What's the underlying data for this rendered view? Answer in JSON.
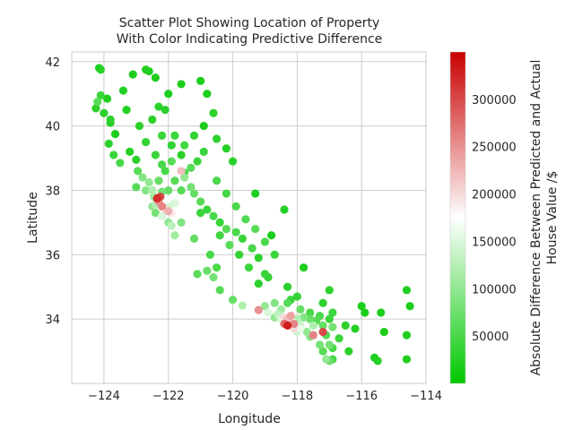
{
  "chart_data": {
    "type": "scatter",
    "title_lines": [
      "Scatter Plot Showing Location of Property",
      "With Color Indicating Predictive Difference"
    ],
    "xlabel": "Longitude",
    "ylabel": "Latitude",
    "xlim": [
      -125,
      -114
    ],
    "ylim": [
      32,
      42.3
    ],
    "x_ticks": [
      -124,
      -122,
      -120,
      -118,
      -116,
      -114
    ],
    "y_ticks": [
      34,
      36,
      38,
      40,
      42
    ],
    "x_tick_labels": [
      "−124",
      "−122",
      "−120",
      "−118",
      "−116",
      "−114"
    ],
    "y_tick_labels": [
      "34",
      "36",
      "38",
      "40",
      "42"
    ],
    "grid": true,
    "colorbar": {
      "label_lines": [
        "Absolute Difference Between Predicted and Actual",
        "House Value /$"
      ],
      "range": [
        0,
        350000
      ],
      "ticks": [
        50000,
        100000,
        150000,
        200000,
        250000,
        300000
      ],
      "tick_labels": [
        "50000",
        "100000",
        "150000",
        "200000",
        "250000",
        "300000"
      ],
      "colors": [
        "#00c800",
        "#ffffff",
        "#c80000"
      ]
    },
    "points": [
      [
        -124.15,
        41.8,
        20000
      ],
      [
        -124.1,
        41.75,
        25000
      ],
      [
        -124.25,
        40.55,
        30000
      ],
      [
        -124.1,
        40.95,
        40000
      ],
      [
        -123.9,
        40.85,
        20000
      ],
      [
        -124.2,
        40.75,
        60000
      ],
      [
        -124.0,
        40.4,
        30000
      ],
      [
        -123.8,
        40.1,
        25000
      ],
      [
        -123.85,
        39.45,
        30000
      ],
      [
        -123.65,
        39.75,
        20000
      ],
      [
        -123.7,
        39.1,
        40000
      ],
      [
        -123.5,
        38.85,
        50000
      ],
      [
        -123.2,
        39.2,
        25000
      ],
      [
        -123.0,
        38.95,
        30000
      ],
      [
        -122.95,
        38.6,
        60000
      ],
      [
        -122.8,
        38.4,
        90000
      ],
      [
        -122.6,
        38.25,
        100000
      ],
      [
        -122.5,
        38.0,
        120000
      ],
      [
        -122.45,
        37.8,
        110000
      ],
      [
        -122.35,
        37.75,
        320000
      ],
      [
        -122.25,
        37.8,
        300000
      ],
      [
        -122.3,
        37.65,
        250000
      ],
      [
        -122.2,
        37.5,
        260000
      ],
      [
        -122.1,
        37.4,
        200000
      ],
      [
        -122.0,
        37.35,
        230000
      ],
      [
        -121.9,
        37.3,
        190000
      ],
      [
        -121.95,
        37.55,
        140000
      ],
      [
        -122.05,
        37.7,
        170000
      ],
      [
        -121.8,
        37.6,
        150000
      ],
      [
        -122.4,
        37.55,
        120000
      ],
      [
        -122.5,
        37.5,
        100000
      ],
      [
        -122.2,
        37.95,
        80000
      ],
      [
        -122.0,
        38.0,
        70000
      ],
      [
        -121.8,
        38.3,
        60000
      ],
      [
        -121.5,
        38.55,
        50000
      ],
      [
        -121.3,
        38.7,
        60000
      ],
      [
        -121.1,
        38.9,
        40000
      ],
      [
        -121.6,
        39.1,
        30000
      ],
      [
        -121.8,
        39.7,
        40000
      ],
      [
        -122.1,
        40.5,
        30000
      ],
      [
        -122.3,
        40.6,
        30000
      ],
      [
        -122.4,
        41.5,
        20000
      ],
      [
        -122.6,
        41.7,
        20000
      ],
      [
        -122.7,
        41.75,
        25000
      ],
      [
        -122.5,
        40.2,
        30000
      ],
      [
        -122.2,
        39.7,
        40000
      ],
      [
        -121.9,
        39.4,
        35000
      ],
      [
        -121.6,
        38.6,
        220000
      ],
      [
        -121.5,
        38.4,
        100000
      ],
      [
        -121.3,
        38.1,
        80000
      ],
      [
        -121.2,
        37.9,
        70000
      ],
      [
        -121.0,
        37.65,
        60000
      ],
      [
        -120.8,
        37.4,
        40000
      ],
      [
        -120.6,
        37.2,
        50000
      ],
      [
        -120.4,
        37.0,
        40000
      ],
      [
        -120.2,
        36.8,
        60000
      ],
      [
        -119.9,
        36.7,
        50000
      ],
      [
        -119.7,
        36.5,
        40000
      ],
      [
        -119.4,
        36.2,
        50000
      ],
      [
        -119.2,
        35.9,
        30000
      ],
      [
        -119.0,
        35.4,
        40000
      ],
      [
        -118.9,
        35.3,
        35000
      ],
      [
        -120.6,
        35.3,
        80000
      ],
      [
        -120.4,
        34.9,
        60000
      ],
      [
        -120.0,
        34.6,
        70000
      ],
      [
        -119.7,
        34.42,
        120000
      ],
      [
        -119.2,
        34.28,
        250000
      ],
      [
        -118.9,
        34.2,
        150000
      ],
      [
        -118.6,
        34.15,
        130000
      ],
      [
        -118.4,
        34.05,
        200000
      ],
      [
        -118.3,
        34.0,
        220000
      ],
      [
        -118.2,
        34.1,
        240000
      ],
      [
        -118.15,
        33.9,
        180000
      ],
      [
        -118.3,
        33.8,
        330000
      ],
      [
        -118.1,
        33.85,
        260000
      ],
      [
        -117.9,
        33.8,
        140000
      ],
      [
        -117.9,
        33.7,
        160000
      ],
      [
        -117.7,
        33.6,
        100000
      ],
      [
        -117.6,
        33.45,
        90000
      ],
      [
        -117.3,
        33.2,
        80000
      ],
      [
        -117.2,
        33.0,
        60000
      ],
      [
        -117.1,
        32.75,
        100000
      ],
      [
        -117.0,
        32.7,
        70000
      ],
      [
        -117.3,
        34.1,
        50000
      ],
      [
        -117.4,
        33.95,
        60000
      ],
      [
        -117.0,
        34.0,
        40000
      ],
      [
        -116.5,
        33.8,
        30000
      ],
      [
        -116.2,
        33.7,
        25000
      ],
      [
        -115.6,
        32.8,
        20000
      ],
      [
        -115.5,
        32.7,
        25000
      ],
      [
        -116.9,
        32.75,
        50000
      ],
      [
        -117.2,
        34.5,
        30000
      ],
      [
        -118.2,
        34.6,
        40000
      ],
      [
        -118.0,
        34.7,
        35000
      ],
      [
        -119.0,
        34.4,
        100000
      ],
      [
        -118.5,
        34.3,
        110000
      ],
      [
        -118.0,
        34.0,
        120000
      ],
      [
        -117.8,
        34.05,
        90000
      ],
      [
        -117.6,
        34.0,
        70000
      ],
      [
        -118.1,
        33.7,
        200000
      ],
      [
        -117.5,
        33.5,
        260000
      ],
      [
        -116.9,
        33.75,
        80000
      ],
      [
        -115.9,
        34.2,
        20000
      ],
      [
        -115.4,
        34.2,
        20000
      ],
      [
        -115.3,
        33.6,
        20000
      ],
      [
        -114.6,
        34.9,
        20000
      ],
      [
        -114.5,
        34.4,
        20000
      ],
      [
        -114.6,
        33.5,
        20000
      ],
      [
        -114.6,
        32.75,
        20000
      ],
      [
        -116.0,
        34.4,
        20000
      ],
      [
        -117.0,
        34.9,
        30000
      ],
      [
        -116.9,
        34.2,
        40000
      ],
      [
        -117.8,
        35.6,
        20000
      ],
      [
        -118.3,
        35.0,
        30000
      ],
      [
        -118.8,
        36.6,
        20000
      ],
      [
        -118.4,
        37.4,
        25000
      ],
      [
        -119.3,
        37.9,
        20000
      ],
      [
        -120.0,
        38.9,
        30000
      ],
      [
        -120.2,
        39.3,
        25000
      ],
      [
        -120.5,
        39.6,
        30000
      ],
      [
        -120.9,
        40.0,
        20000
      ],
      [
        -120.6,
        40.4,
        30000
      ],
      [
        -120.8,
        41.0,
        20000
      ],
      [
        -121.0,
        41.4,
        20000
      ],
      [
        -121.6,
        41.3,
        20000
      ],
      [
        -122.0,
        41.0,
        20000
      ],
      [
        -123.1,
        41.6,
        20000
      ],
      [
        -123.4,
        41.1,
        25000
      ],
      [
        -123.8,
        40.2,
        30000
      ],
      [
        -123.3,
        40.5,
        25000
      ],
      [
        -122.9,
        40.0,
        30000
      ],
      [
        -122.7,
        39.5,
        35000
      ],
      [
        -122.4,
        39.1,
        40000
      ],
      [
        -122.2,
        38.8,
        50000
      ],
      [
        -121.9,
        38.9,
        60000
      ],
      [
        -121.5,
        39.4,
        45000
      ],
      [
        -121.2,
        39.7,
        35000
      ],
      [
        -120.9,
        39.2,
        40000
      ],
      [
        -120.5,
        38.3,
        50000
      ],
      [
        -120.2,
        37.9,
        45000
      ],
      [
        -119.9,
        37.5,
        50000
      ],
      [
        -119.6,
        37.1,
        55000
      ],
      [
        -119.3,
        36.8,
        60000
      ],
      [
        -119.0,
        36.4,
        50000
      ],
      [
        -118.7,
        36.0,
        40000
      ],
      [
        -120.1,
        36.3,
        60000
      ],
      [
        -120.7,
        36.0,
        50000
      ],
      [
        -121.2,
        36.5,
        70000
      ],
      [
        -121.8,
        36.6,
        110000
      ],
      [
        -121.9,
        36.9,
        130000
      ],
      [
        -122.0,
        37.0,
        100000
      ],
      [
        -121.6,
        37.0,
        90000
      ],
      [
        -122.2,
        37.2,
        150000
      ],
      [
        -122.4,
        37.3,
        80000
      ],
      [
        -123.0,
        38.1,
        60000
      ],
      [
        -122.7,
        38.0,
        90000
      ],
      [
        -122.3,
        38.3,
        70000
      ],
      [
        -122.1,
        38.6,
        50000
      ],
      [
        -121.6,
        38.0,
        60000
      ],
      [
        -121.0,
        37.3,
        40000
      ],
      [
        -120.4,
        36.6,
        45000
      ],
      [
        -119.8,
        36.0,
        35000
      ],
      [
        -119.5,
        35.6,
        40000
      ],
      [
        -119.2,
        35.1,
        30000
      ],
      [
        -120.5,
        35.6,
        50000
      ],
      [
        -120.8,
        35.5,
        70000
      ],
      [
        -121.1,
        35.4,
        60000
      ],
      [
        -118.7,
        34.5,
        90000
      ],
      [
        -118.3,
        34.5,
        60000
      ],
      [
        -117.9,
        34.3,
        70000
      ],
      [
        -117.6,
        34.2,
        50000
      ],
      [
        -117.2,
        33.8,
        70000
      ],
      [
        -117.1,
        33.5,
        60000
      ],
      [
        -116.7,
        33.4,
        40000
      ],
      [
        -116.4,
        33.0,
        30000
      ],
      [
        -116.9,
        33.1,
        50000
      ],
      [
        -117.0,
        33.2,
        80000
      ],
      [
        -117.2,
        33.6,
        300000
      ],
      [
        -117.5,
        33.8,
        120000
      ],
      [
        -118.0,
        33.6,
        140000
      ],
      [
        -118.4,
        33.85,
        280000
      ],
      [
        -118.5,
        34.0,
        150000
      ],
      [
        -118.7,
        34.05,
        100000
      ]
    ]
  }
}
